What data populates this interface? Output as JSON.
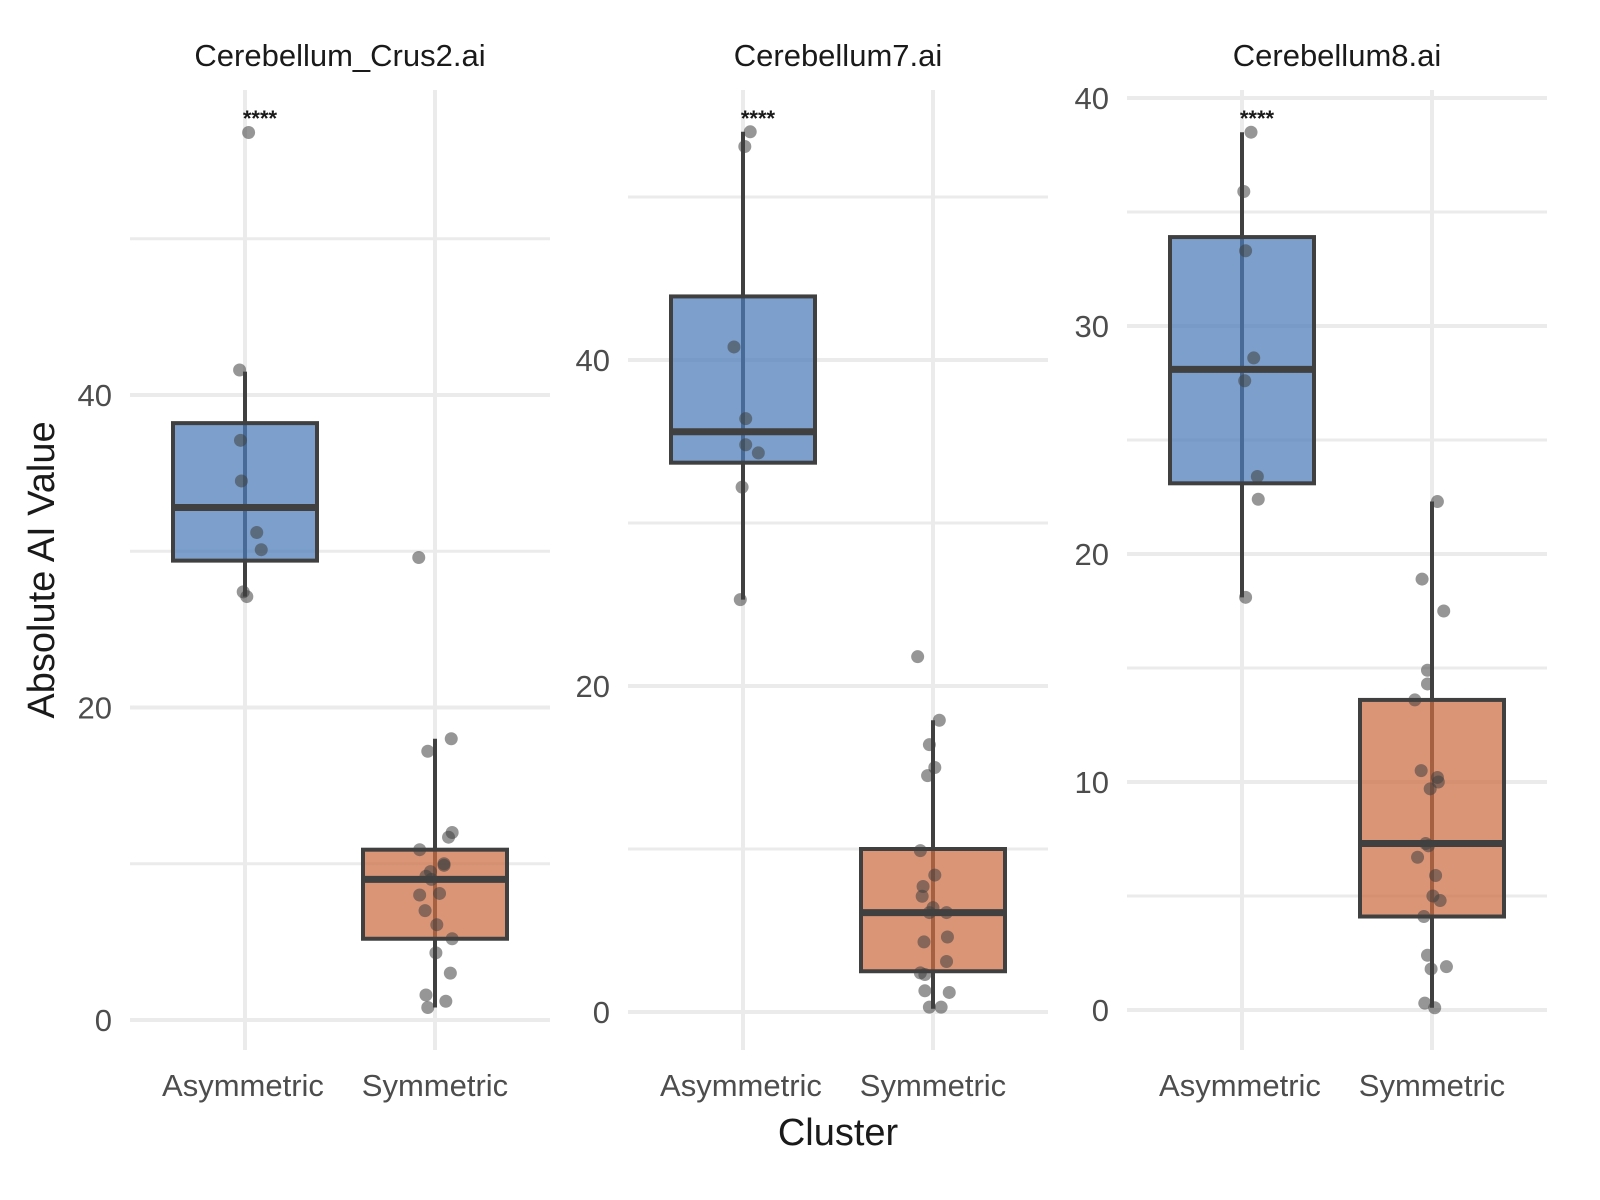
{
  "chart_data": {
    "type": "box",
    "title": "",
    "xlabel": "Cluster",
    "ylabel": "Absolute AI Value",
    "grid": true,
    "legend": "none",
    "colors": {
      "Asymmetric": "#4a7ab7",
      "Symmetric": "#cc6c42",
      "points": "#404040",
      "box_outline": "#404040"
    },
    "categories": [
      "Asymmetric",
      "Symmetric"
    ],
    "panels": [
      {
        "title": "Cerebellum_Crus2.ai",
        "ylim": [
          -1.5,
          60
        ],
        "yticks": [
          0,
          20,
          40
        ],
        "ygrid_minor": [
          10,
          30,
          50
        ],
        "significance": "****",
        "groups": [
          {
            "name": "Asymmetric",
            "q1": 29.4,
            "median": 32.8,
            "q3": 38.2,
            "whisker_low": 27.1,
            "whisker_high": 41.5,
            "points": [
              56.8,
              41.6,
              37.1,
              34.5,
              31.2,
              30.1,
              27.4,
              27.1
            ],
            "jitter": [
              0.04,
              -0.06,
              -0.05,
              -0.04,
              0.13,
              0.18,
              -0.02,
              0.02
            ]
          },
          {
            "name": "Symmetric",
            "q1": 5.2,
            "median": 9.0,
            "q3": 10.9,
            "whisker_low": 0.8,
            "whisker_high": 18.0,
            "points": [
              18.0,
              17.2,
              12.0,
              11.7,
              10.9,
              10.0,
              9.9,
              9.5,
              9.2,
              9.0,
              8.1,
              8.0,
              7.0,
              6.1,
              5.2,
              4.3,
              3.0,
              1.6,
              1.2,
              0.8,
              29.6
            ],
            "jitter": [
              0.18,
              -0.08,
              0.19,
              0.15,
              -0.17,
              0.1,
              0.1,
              -0.05,
              -0.1,
              -0.04,
              0.05,
              -0.17,
              -0.11,
              0.02,
              0.19,
              0.01,
              0.17,
              -0.1,
              0.12,
              -0.08,
              -0.18
            ]
          }
        ]
      },
      {
        "title": "Cerebellum7.ai",
        "ylim": [
          -1.5,
          58
        ],
        "yticks": [
          0,
          20,
          40
        ],
        "ygrid_minor": [
          10,
          30,
          50
        ],
        "significance": "****",
        "groups": [
          {
            "name": "Asymmetric",
            "q1": 33.7,
            "median": 35.6,
            "q3": 43.9,
            "whisker_low": 25.3,
            "whisker_high": 54.0,
            "points": [
              54.0,
              53.1,
              40.8,
              36.4,
              34.8,
              34.3,
              32.2,
              25.3
            ],
            "jitter": [
              0.08,
              0.02,
              -0.1,
              0.03,
              0.03,
              0.17,
              -0.01,
              -0.03
            ]
          },
          {
            "name": "Symmetric",
            "q1": 2.5,
            "median": 6.1,
            "q3": 10.0,
            "whisker_low": 0.2,
            "whisker_high": 17.9,
            "points": [
              21.8,
              17.9,
              16.4,
              15.0,
              14.5,
              9.9,
              8.4,
              7.7,
              7.1,
              6.4,
              6.1,
              6.1,
              4.6,
              4.3,
              3.1,
              2.4,
              2.3,
              1.3,
              1.2,
              0.3,
              0.3
            ],
            "jitter": [
              -0.17,
              0.07,
              -0.04,
              0.02,
              -0.06,
              -0.14,
              0.02,
              -0.11,
              -0.12,
              0.0,
              -0.04,
              0.15,
              0.16,
              -0.1,
              0.15,
              -0.14,
              -0.09,
              -0.09,
              0.18,
              -0.04,
              0.09
            ]
          }
        ]
      },
      {
        "title": "Cerebellum8.ai",
        "ylim": [
          -1.5,
          41
        ],
        "yticks": [
          0,
          10,
          20,
          30,
          40
        ],
        "ygrid_minor": [
          5,
          15,
          25,
          35
        ],
        "significance": "****",
        "groups": [
          {
            "name": "Asymmetric",
            "q1": 23.1,
            "median": 28.1,
            "q3": 33.9,
            "whisker_low": 18.1,
            "whisker_high": 38.5,
            "points": [
              38.5,
              35.9,
              33.3,
              28.6,
              27.6,
              23.4,
              22.4,
              18.1
            ],
            "jitter": [
              0.1,
              0.02,
              0.04,
              0.13,
              0.03,
              0.17,
              0.18,
              0.04
            ]
          },
          {
            "name": "Symmetric",
            "q1": 4.1,
            "median": 7.3,
            "q3": 13.6,
            "whisker_low": 0.1,
            "whisker_high": 22.3,
            "points": [
              22.3,
              18.9,
              17.5,
              14.9,
              14.3,
              13.6,
              10.5,
              10.2,
              10.0,
              9.7,
              7.3,
              7.2,
              6.7,
              5.9,
              5.0,
              4.8,
              4.1,
              2.4,
              1.9,
              1.8,
              0.3,
              0.1
            ],
            "jitter": [
              0.06,
              -0.11,
              0.13,
              -0.05,
              -0.05,
              -0.19,
              -0.12,
              0.06,
              0.07,
              -0.02,
              -0.07,
              -0.04,
              -0.16,
              0.04,
              0.01,
              0.09,
              -0.09,
              -0.05,
              0.16,
              -0.01,
              -0.08,
              0.03
            ]
          }
        ]
      }
    ]
  }
}
